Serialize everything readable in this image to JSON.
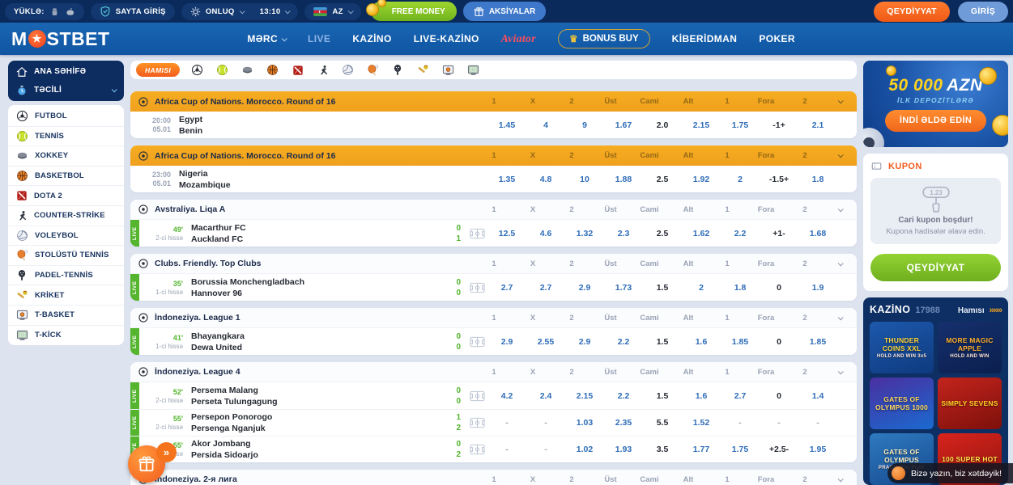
{
  "topbar": {
    "download_label": "YÜKLƏ:",
    "site_access": "SAYTA GİRİŞ",
    "odds_format": "ONLUQ",
    "time": "13:10",
    "language": "AZ",
    "free_money": "FREE MONEY",
    "promotions": "AKSİYALAR",
    "register": "QEYDİYYAT",
    "login": "GİRİŞ"
  },
  "navbar": {
    "logo_prefix": "M",
    "logo_star": "★",
    "logo_suffix": "STBET",
    "merc": "MƏRC",
    "live": "LIVE",
    "kazino": "KAZİNO",
    "live_kazino": "LIVE-KAZİNO",
    "aviator": "Aviator",
    "bonus_buy": "BONUS BUY",
    "kiberidman": "KİBERİDMAN",
    "poker": "POKER"
  },
  "sidebar": {
    "home": "ANA SƏHİFƏ",
    "urgent": "TƏCİLİ",
    "sports": [
      {
        "icon": "football-icon",
        "label": "FUTBOL"
      },
      {
        "icon": "tennis-icon",
        "label": "TENNİS"
      },
      {
        "icon": "hockey-icon",
        "label": "XOKKEY"
      },
      {
        "icon": "basketball-icon",
        "label": "BASKETBOL"
      },
      {
        "icon": "dota2-icon",
        "label": "DOTA 2"
      },
      {
        "icon": "counter-strike-icon",
        "label": "COUNTER-STRİKE"
      },
      {
        "icon": "volleyball-icon",
        "label": "VOLEYBOL"
      },
      {
        "icon": "table-tennis-icon",
        "label": "STOLÜSTÜ TENNİS"
      },
      {
        "icon": "padel-icon",
        "label": "PADEL-TENNİS"
      },
      {
        "icon": "cricket-icon",
        "label": "KRİKET"
      },
      {
        "icon": "t-basket-icon",
        "label": "T-BASKET"
      },
      {
        "icon": "t-kick-icon",
        "label": "T-KİCK"
      }
    ]
  },
  "filters": {
    "all": "Hamısı"
  },
  "events": {
    "columns": [
      "1",
      "X",
      "2",
      "Üst",
      "Cami",
      "Alt",
      "1",
      "Fora",
      "2"
    ],
    "param_cols": [
      4,
      7
    ],
    "groups": [
      {
        "title": "Africa Cup of Nations. Morocco. Round of 16",
        "style": "yellow",
        "rows": [
          {
            "live": false,
            "time": "20:00",
            "date": "05.01",
            "home": "Egypt",
            "away": "Benin",
            "odds": [
              "1.45",
              "4",
              "9",
              "1.67",
              "2.0",
              "2.15",
              "1.75",
              "-1+",
              "2.1"
            ]
          }
        ]
      },
      {
        "title": "Africa Cup of Nations. Morocco. Round of 16",
        "style": "yellow",
        "rows": [
          {
            "live": false,
            "time": "23:00",
            "date": "05.01",
            "home": "Nigeria",
            "away": "Mozambique",
            "odds": [
              "1.35",
              "4.8",
              "10",
              "1.88",
              "2.5",
              "1.92",
              "2",
              "-1.5+",
              "1.8"
            ]
          }
        ]
      },
      {
        "title": "Avstraliya. Liqa A",
        "style": "white",
        "rows": [
          {
            "live": true,
            "minute": "49'",
            "period": "2-ci hissə",
            "home": "Macarthur FC",
            "away": "Auckland FC",
            "score": [
              "0",
              "1"
            ],
            "odds": [
              "12.5",
              "4.6",
              "1.32",
              "2.3",
              "2.5",
              "1.62",
              "2.2",
              "+1-",
              "1.68"
            ]
          }
        ]
      },
      {
        "title": "Clubs. Friendly. Top Clubs",
        "style": "white",
        "rows": [
          {
            "live": true,
            "minute": "35'",
            "period": "1-ci hissə",
            "home": "Borussia Monchengladbach",
            "away": "Hannover 96",
            "score": [
              "0",
              "0"
            ],
            "odds": [
              "2.7",
              "2.7",
              "2.9",
              "1.73",
              "1.5",
              "2",
              "1.8",
              "0",
              "1.9"
            ]
          }
        ]
      },
      {
        "title": "İndoneziya. League 1",
        "style": "white",
        "rows": [
          {
            "live": true,
            "minute": "41'",
            "period": "1-ci hissə",
            "home": "Bhayangkara",
            "away": "Dewa United",
            "score": [
              "0",
              "0"
            ],
            "odds": [
              "2.9",
              "2.55",
              "2.9",
              "2.2",
              "1.5",
              "1.6",
              "1.85",
              "0",
              "1.85"
            ]
          }
        ]
      },
      {
        "title": "İndoneziya. League 4",
        "style": "white",
        "rows": [
          {
            "live": true,
            "minute": "52'",
            "period": "2-ci hissə",
            "home": "Persema Malang",
            "away": "Perseta Tulungagung",
            "score": [
              "0",
              "0"
            ],
            "odds": [
              "4.2",
              "2.4",
              "2.15",
              "2.2",
              "1.5",
              "1.6",
              "2.7",
              "0",
              "1.4"
            ]
          },
          {
            "live": true,
            "minute": "55'",
            "period": "2-ci hissə",
            "home": "Persepon Ponorogo",
            "away": "Persenga Nganjuk",
            "score": [
              "1",
              "2"
            ],
            "odds": [
              "-",
              "-",
              "1.03",
              "2.35",
              "5.5",
              "1.52",
              "-",
              "-",
              "-"
            ]
          },
          {
            "live": true,
            "minute": "55'",
            "period": "2-ci hissə",
            "home": "Akor Jombang",
            "away": "Persida Sidoarjo",
            "score": [
              "0",
              "2"
            ],
            "odds": [
              "-",
              "-",
              "1.02",
              "1.93",
              "3.5",
              "1.77",
              "1.75",
              "+2.5-",
              "1.95"
            ]
          }
        ]
      },
      {
        "title": "İndoneziya. 2-я лига",
        "style": "white",
        "rows": []
      }
    ]
  },
  "banner": {
    "amount": "50 000",
    "currency": "AZN",
    "subtitle": "İLK DEPOZİTLƏRƏ",
    "cta": "İNDİ ƏLDƏ EDİN"
  },
  "coupon": {
    "title": "KUPON",
    "icon_text": "1.23",
    "empty1": "Cari kupon boşdur!",
    "empty2": "Kupona hadisələr əlavə edin.",
    "cta": "QEYDİYYAT"
  },
  "casino": {
    "title": "KAZİNO",
    "count": "17988",
    "all": "Hamısı",
    "arrows": "»»»",
    "games": [
      {
        "title": "THUNDER COINS XXL",
        "subtitle": "HOLD AND WIN 3x5",
        "bg1": "#1d59ad",
        "bg2": "#0e3a7e",
        "color": "#ffd73a"
      },
      {
        "title": "MORE MAGIC APPLE",
        "subtitle": "HOLD AND WIN",
        "bg1": "#16306e",
        "bg2": "#0b1f4e",
        "color": "#ffb02e"
      },
      {
        "title": "GATES OF OLYMPUS 1000",
        "subtitle": "",
        "bg1": "#4a2fa0",
        "bg2": "#1a6ad0",
        "color": "#ffd75e"
      },
      {
        "title": "SIMPLY SEVENS",
        "subtitle": "",
        "bg1": "#c3241c",
        "bg2": "#7e100c",
        "color": "#ffd428"
      },
      {
        "title": "GATES OF OLYMPUS",
        "subtitle": "PRAGMATIC PLAY",
        "bg1": "#2e7ac0",
        "bg2": "#174a8e",
        "color": "#fff0c0"
      },
      {
        "title": "100 SUPER HOT",
        "subtitle": "",
        "bg1": "#d8241c",
        "bg2": "#8e1410",
        "color": "#ffe24a"
      }
    ]
  },
  "chat": {
    "message": "Bizə yazın, biz xətdəyik!"
  },
  "floating": {
    "arrows": "»"
  }
}
